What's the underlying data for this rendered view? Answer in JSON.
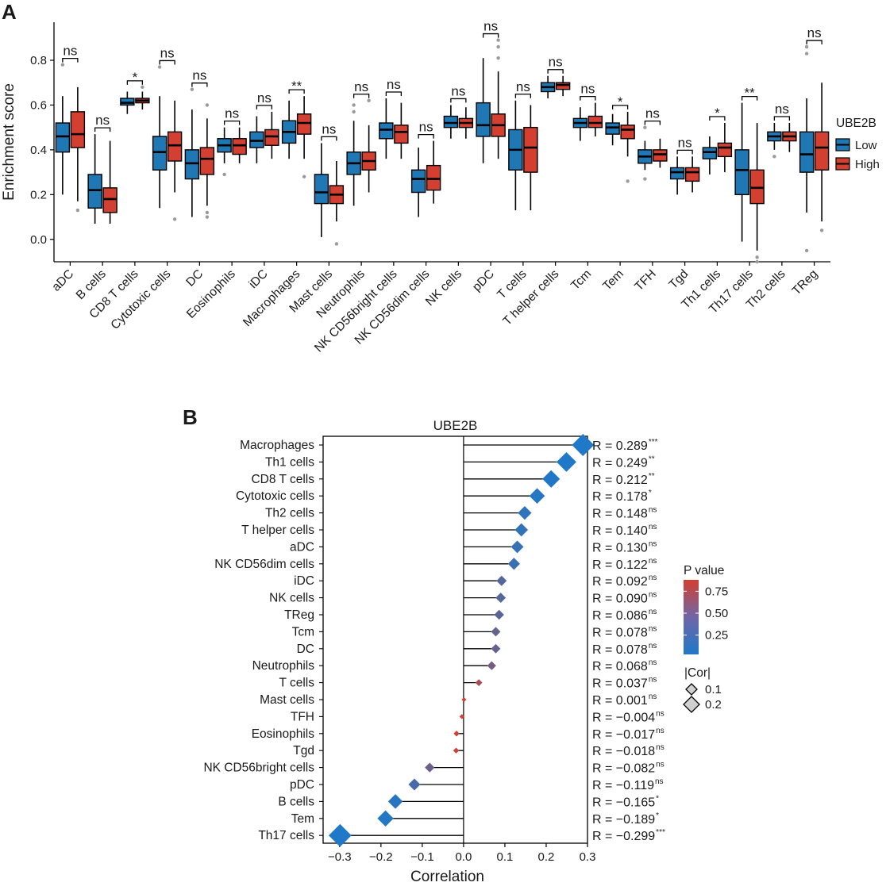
{
  "chart_data": [
    {
      "panel": "A",
      "type": "boxplot",
      "ylabel": "Enrichment score",
      "ylim": [
        -0.1,
        0.97
      ],
      "yticks": [
        0.0,
        0.2,
        0.4,
        0.6,
        0.8
      ],
      "ytick_labels": [
        "0.0",
        "0.2",
        "0.4",
        "0.6",
        "0.8"
      ],
      "legend": {
        "title": "UBE2B",
        "items": [
          {
            "name": "Low",
            "color": "#1f78b4"
          },
          {
            "name": "High",
            "color": "#d33f30"
          }
        ]
      },
      "categories": [
        "aDC",
        "B cells",
        "CD8 T cells",
        "Cytotoxic cells",
        "DC",
        "Eosinophils",
        "iDC",
        "Macrophages",
        "Mast cells",
        "Neutrophils",
        "NK CD56bright cells",
        "NK CD56dim cells",
        "NK cells",
        "pDC",
        "T cells",
        "T helper cells",
        "Tcm",
        "Tem",
        "TFH",
        "Tgd",
        "Th1 cells",
        "Th17 cells",
        "Th2 cells",
        "TReg"
      ],
      "significance": [
        "ns",
        "ns",
        "*",
        "ns",
        "ns",
        "ns",
        "ns",
        "**",
        "ns",
        "ns",
        "ns",
        "ns",
        "ns",
        "ns",
        "ns",
        "ns",
        "ns",
        "*",
        "ns",
        "ns",
        "*",
        "**",
        "ns",
        "ns"
      ],
      "series": [
        {
          "name": "Low",
          "boxes": [
            {
              "wlo": 0.2,
              "q1": 0.39,
              "med": 0.46,
              "q3": 0.52,
              "whi": 0.64,
              "out": [
                0.78
              ]
            },
            {
              "wlo": 0.07,
              "q1": 0.14,
              "med": 0.22,
              "q3": 0.29,
              "whi": 0.47,
              "out": []
            },
            {
              "wlo": 0.56,
              "q1": 0.6,
              "med": 0.61,
              "q3": 0.63,
              "whi": 0.66,
              "out": []
            },
            {
              "wlo": 0.14,
              "q1": 0.31,
              "med": 0.39,
              "q3": 0.46,
              "whi": 0.64,
              "out": [
                0.77
              ]
            },
            {
              "wlo": 0.1,
              "q1": 0.27,
              "med": 0.34,
              "q3": 0.4,
              "whi": 0.58,
              "out": [
                0.67
              ]
            },
            {
              "wlo": 0.34,
              "q1": 0.39,
              "med": 0.42,
              "q3": 0.45,
              "whi": 0.5,
              "out": [
                0.29
              ]
            },
            {
              "wlo": 0.34,
              "q1": 0.41,
              "med": 0.44,
              "q3": 0.48,
              "whi": 0.55,
              "out": []
            },
            {
              "wlo": 0.36,
              "q1": 0.43,
              "med": 0.48,
              "q3": 0.53,
              "whi": 0.62,
              "out": []
            },
            {
              "wlo": 0.01,
              "q1": 0.16,
              "med": 0.21,
              "q3": 0.29,
              "whi": 0.43,
              "out": []
            },
            {
              "wlo": 0.15,
              "q1": 0.29,
              "med": 0.34,
              "q3": 0.39,
              "whi": 0.53,
              "out": [
                0.57,
                0.6
              ]
            },
            {
              "wlo": 0.36,
              "q1": 0.45,
              "med": 0.49,
              "q3": 0.52,
              "whi": 0.63,
              "out": []
            },
            {
              "wlo": 0.1,
              "q1": 0.21,
              "med": 0.27,
              "q3": 0.31,
              "whi": 0.41,
              "out": []
            },
            {
              "wlo": 0.45,
              "q1": 0.5,
              "med": 0.52,
              "q3": 0.55,
              "whi": 0.6,
              "out": []
            },
            {
              "wlo": 0.34,
              "q1": 0.46,
              "med": 0.51,
              "q3": 0.61,
              "whi": 0.81,
              "out": []
            },
            {
              "wlo": 0.13,
              "q1": 0.31,
              "med": 0.4,
              "q3": 0.49,
              "whi": 0.62,
              "out": []
            },
            {
              "wlo": 0.63,
              "q1": 0.66,
              "med": 0.68,
              "q3": 0.7,
              "whi": 0.73,
              "out": []
            },
            {
              "wlo": 0.44,
              "q1": 0.5,
              "med": 0.52,
              "q3": 0.54,
              "whi": 0.59,
              "out": []
            },
            {
              "wlo": 0.42,
              "q1": 0.47,
              "med": 0.5,
              "q3": 0.52,
              "whi": 0.56,
              "out": []
            },
            {
              "wlo": 0.31,
              "q1": 0.34,
              "med": 0.37,
              "q3": 0.4,
              "whi": 0.44,
              "out": [
                0.27,
                0.5
              ]
            },
            {
              "wlo": 0.2,
              "q1": 0.27,
              "med": 0.3,
              "q3": 0.32,
              "whi": 0.37,
              "out": []
            },
            {
              "wlo": 0.29,
              "q1": 0.36,
              "med": 0.39,
              "q3": 0.41,
              "whi": 0.46,
              "out": []
            },
            {
              "wlo": -0.01,
              "q1": 0.2,
              "med": 0.31,
              "q3": 0.4,
              "whi": 0.61,
              "out": []
            },
            {
              "wlo": 0.4,
              "q1": 0.44,
              "med": 0.46,
              "q3": 0.48,
              "whi": 0.52,
              "out": [
                0.37
              ]
            },
            {
              "wlo": 0.12,
              "q1": 0.3,
              "med": 0.38,
              "q3": 0.48,
              "whi": 0.63,
              "out": [
                0.83,
                0.86,
                -0.05
              ]
            }
          ]
        },
        {
          "name": "High",
          "boxes": [
            {
              "wlo": 0.17,
              "q1": 0.41,
              "med": 0.47,
              "q3": 0.57,
              "whi": 0.68,
              "out": [
                0.13
              ]
            },
            {
              "wlo": 0.07,
              "q1": 0.12,
              "med": 0.18,
              "q3": 0.23,
              "whi": 0.44,
              "out": []
            },
            {
              "wlo": 0.58,
              "q1": 0.61,
              "med": 0.62,
              "q3": 0.63,
              "whi": 0.66,
              "out": [
                0.68
              ]
            },
            {
              "wlo": 0.21,
              "q1": 0.35,
              "med": 0.42,
              "q3": 0.48,
              "whi": 0.62,
              "out": [
                0.09
              ]
            },
            {
              "wlo": 0.15,
              "q1": 0.29,
              "med": 0.36,
              "q3": 0.41,
              "whi": 0.54,
              "out": [
                0.6,
                0.12,
                0.1
              ]
            },
            {
              "wlo": 0.34,
              "q1": 0.38,
              "med": 0.42,
              "q3": 0.45,
              "whi": 0.5,
              "out": []
            },
            {
              "wlo": 0.36,
              "q1": 0.42,
              "med": 0.46,
              "q3": 0.49,
              "whi": 0.57,
              "out": []
            },
            {
              "wlo": 0.36,
              "q1": 0.47,
              "med": 0.52,
              "q3": 0.56,
              "whi": 0.64,
              "out": [
                0.28
              ]
            },
            {
              "wlo": 0.08,
              "q1": 0.16,
              "med": 0.2,
              "q3": 0.24,
              "whi": 0.35,
              "out": [
                -0.02
              ]
            },
            {
              "wlo": 0.21,
              "q1": 0.31,
              "med": 0.35,
              "q3": 0.39,
              "whi": 0.51,
              "out": [
                0.62
              ]
            },
            {
              "wlo": 0.36,
              "q1": 0.43,
              "med": 0.48,
              "q3": 0.51,
              "whi": 0.61,
              "out": []
            },
            {
              "wlo": 0.16,
              "q1": 0.22,
              "med": 0.27,
              "q3": 0.33,
              "whi": 0.44,
              "out": []
            },
            {
              "wlo": 0.45,
              "q1": 0.5,
              "med": 0.52,
              "q3": 0.54,
              "whi": 0.59,
              "out": []
            },
            {
              "wlo": 0.36,
              "q1": 0.46,
              "med": 0.51,
              "q3": 0.56,
              "whi": 0.75,
              "out": [
                0.81,
                0.86,
                0.89
              ]
            },
            {
              "wlo": 0.13,
              "q1": 0.3,
              "med": 0.41,
              "q3": 0.5,
              "whi": 0.6,
              "out": []
            },
            {
              "wlo": 0.64,
              "q1": 0.67,
              "med": 0.69,
              "q3": 0.7,
              "whi": 0.73,
              "out": []
            },
            {
              "wlo": 0.46,
              "q1": 0.5,
              "med": 0.52,
              "q3": 0.55,
              "whi": 0.61,
              "out": []
            },
            {
              "wlo": 0.37,
              "q1": 0.45,
              "med": 0.49,
              "q3": 0.51,
              "whi": 0.57,
              "out": [
                0.26
              ]
            },
            {
              "wlo": 0.32,
              "q1": 0.35,
              "med": 0.38,
              "q3": 0.4,
              "whi": 0.45,
              "out": []
            },
            {
              "wlo": 0.21,
              "q1": 0.26,
              "med": 0.3,
              "q3": 0.32,
              "whi": 0.37,
              "out": []
            },
            {
              "wlo": 0.3,
              "q1": 0.37,
              "med": 0.41,
              "q3": 0.43,
              "whi": 0.52,
              "out": []
            },
            {
              "wlo": -0.05,
              "q1": 0.16,
              "med": 0.23,
              "q3": 0.31,
              "whi": 0.52,
              "out": [
                -0.08,
                -0.1
              ]
            },
            {
              "wlo": 0.39,
              "q1": 0.44,
              "med": 0.46,
              "q3": 0.48,
              "whi": 0.52,
              "out": []
            },
            {
              "wlo": 0.08,
              "q1": 0.31,
              "med": 0.41,
              "q3": 0.48,
              "whi": 0.7,
              "out": [
                0.04
              ]
            }
          ]
        }
      ]
    },
    {
      "panel": "B",
      "type": "lollipop",
      "title": "UBE2B",
      "xlabel": "Correlation",
      "xlim": [
        -0.34,
        0.3
      ],
      "xticks": [
        -0.3,
        -0.2,
        -0.1,
        0.0,
        0.1,
        0.2,
        0.3
      ],
      "xtick_labels": [
        "−0.3",
        "−0.2",
        "−0.1",
        "0.0",
        "0.1",
        "0.2",
        "0.3"
      ],
      "categories": [
        "Macrophages",
        "Th1 cells",
        "CD8 T cells",
        "Cytotoxic cells",
        "Th2 cells",
        "T helper cells",
        "aDC",
        "NK CD56dim cells",
        "iDC",
        "NK cells",
        "TReg",
        "Tcm",
        "DC",
        "Neutrophils",
        "T cells",
        "Mast cells",
        "TFH",
        "Eosinophils",
        "Tgd",
        "NK CD56bright cells",
        "pDC",
        "B cells",
        "Tem",
        "Th17 cells"
      ],
      "values": [
        0.289,
        0.249,
        0.212,
        0.178,
        0.148,
        0.14,
        0.13,
        0.122,
        0.092,
        0.09,
        0.086,
        0.078,
        0.078,
        0.068,
        0.037,
        0.001,
        -0.004,
        -0.017,
        -0.018,
        -0.082,
        -0.119,
        -0.165,
        -0.189,
        -0.299
      ],
      "pvalues": [
        0.0003,
        0.002,
        0.008,
        0.03,
        0.07,
        0.09,
        0.11,
        0.13,
        0.25,
        0.26,
        0.28,
        0.33,
        0.33,
        0.4,
        0.65,
        0.99,
        0.96,
        0.85,
        0.84,
        0.36,
        0.19,
        0.04,
        0.02,
        0.0002
      ],
      "r_labels": [
        "R = 0.289",
        "R = 0.249",
        "R = 0.212",
        "R = 0.178",
        "R = 0.148",
        "R = 0.140",
        "R = 0.130",
        "R = 0.122",
        "R = 0.092",
        "R = 0.090",
        "R = 0.086",
        "R = 0.078",
        "R = 0.078",
        "R = 0.068",
        "R = 0.037",
        "R = 0.001",
        "R = −0.004",
        "R = −0.017",
        "R = −0.018",
        "R = −0.082",
        "R = −0.119",
        "R = −0.165",
        "R = −0.189",
        "R = −0.299"
      ],
      "sig_labels": [
        "***",
        "**",
        "**",
        "*",
        "ns",
        "ns",
        "ns",
        "ns",
        "ns",
        "ns",
        "ns",
        "ns",
        "ns",
        "ns",
        "ns",
        "ns",
        "ns",
        "ns",
        "ns",
        "ns",
        "ns",
        "*",
        "*",
        "***"
      ],
      "legend": {
        "color_title": "P value",
        "color_ticks": [
          0.25,
          0.5,
          0.75
        ],
        "color_tick_labels": [
          "0.25",
          "0.50",
          "0.75"
        ],
        "color_low": "#1f78c8",
        "color_high": "#d33f30",
        "size_title": "|Cor|",
        "size_items": [
          "0.1",
          "0.2"
        ]
      }
    }
  ]
}
